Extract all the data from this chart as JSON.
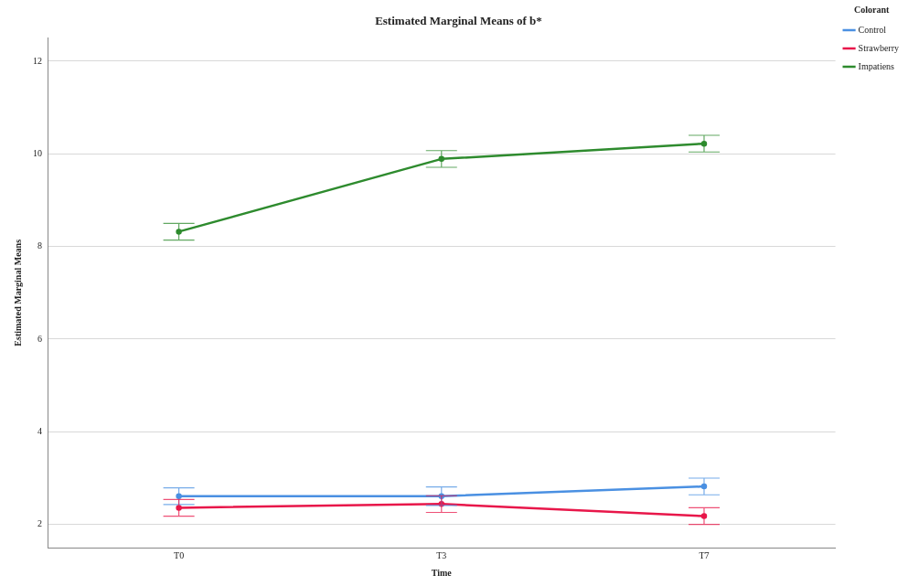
{
  "chart_data": {
    "type": "line",
    "title": "Estimated Marginal Means of b*",
    "xlabel": "Time",
    "ylabel": "Estimated Marginal Means",
    "legend_title": "Colorant",
    "legend": "top right",
    "grid": "y",
    "marker": "circle",
    "line_style": "solid",
    "categories": [
      "T0",
      "T3",
      "T7"
    ],
    "ylim": [
      1.5,
      12.5
    ],
    "yticks": [
      2,
      4,
      6,
      8,
      10,
      12
    ],
    "series": [
      {
        "name": "Control",
        "color": "#4a90e2",
        "values": [
          2.61,
          2.61,
          2.82
        ],
        "errors": [
          0.18,
          0.2,
          0.18
        ]
      },
      {
        "name": "Strawberry",
        "color": "#e8174a",
        "values": [
          2.36,
          2.44,
          2.18
        ],
        "errors": [
          0.18,
          0.18,
          0.18
        ]
      },
      {
        "name": "Impatiens",
        "color": "#2e8b2e",
        "values": [
          8.32,
          9.89,
          10.22
        ],
        "errors": [
          0.18,
          0.18,
          0.18
        ]
      }
    ]
  }
}
